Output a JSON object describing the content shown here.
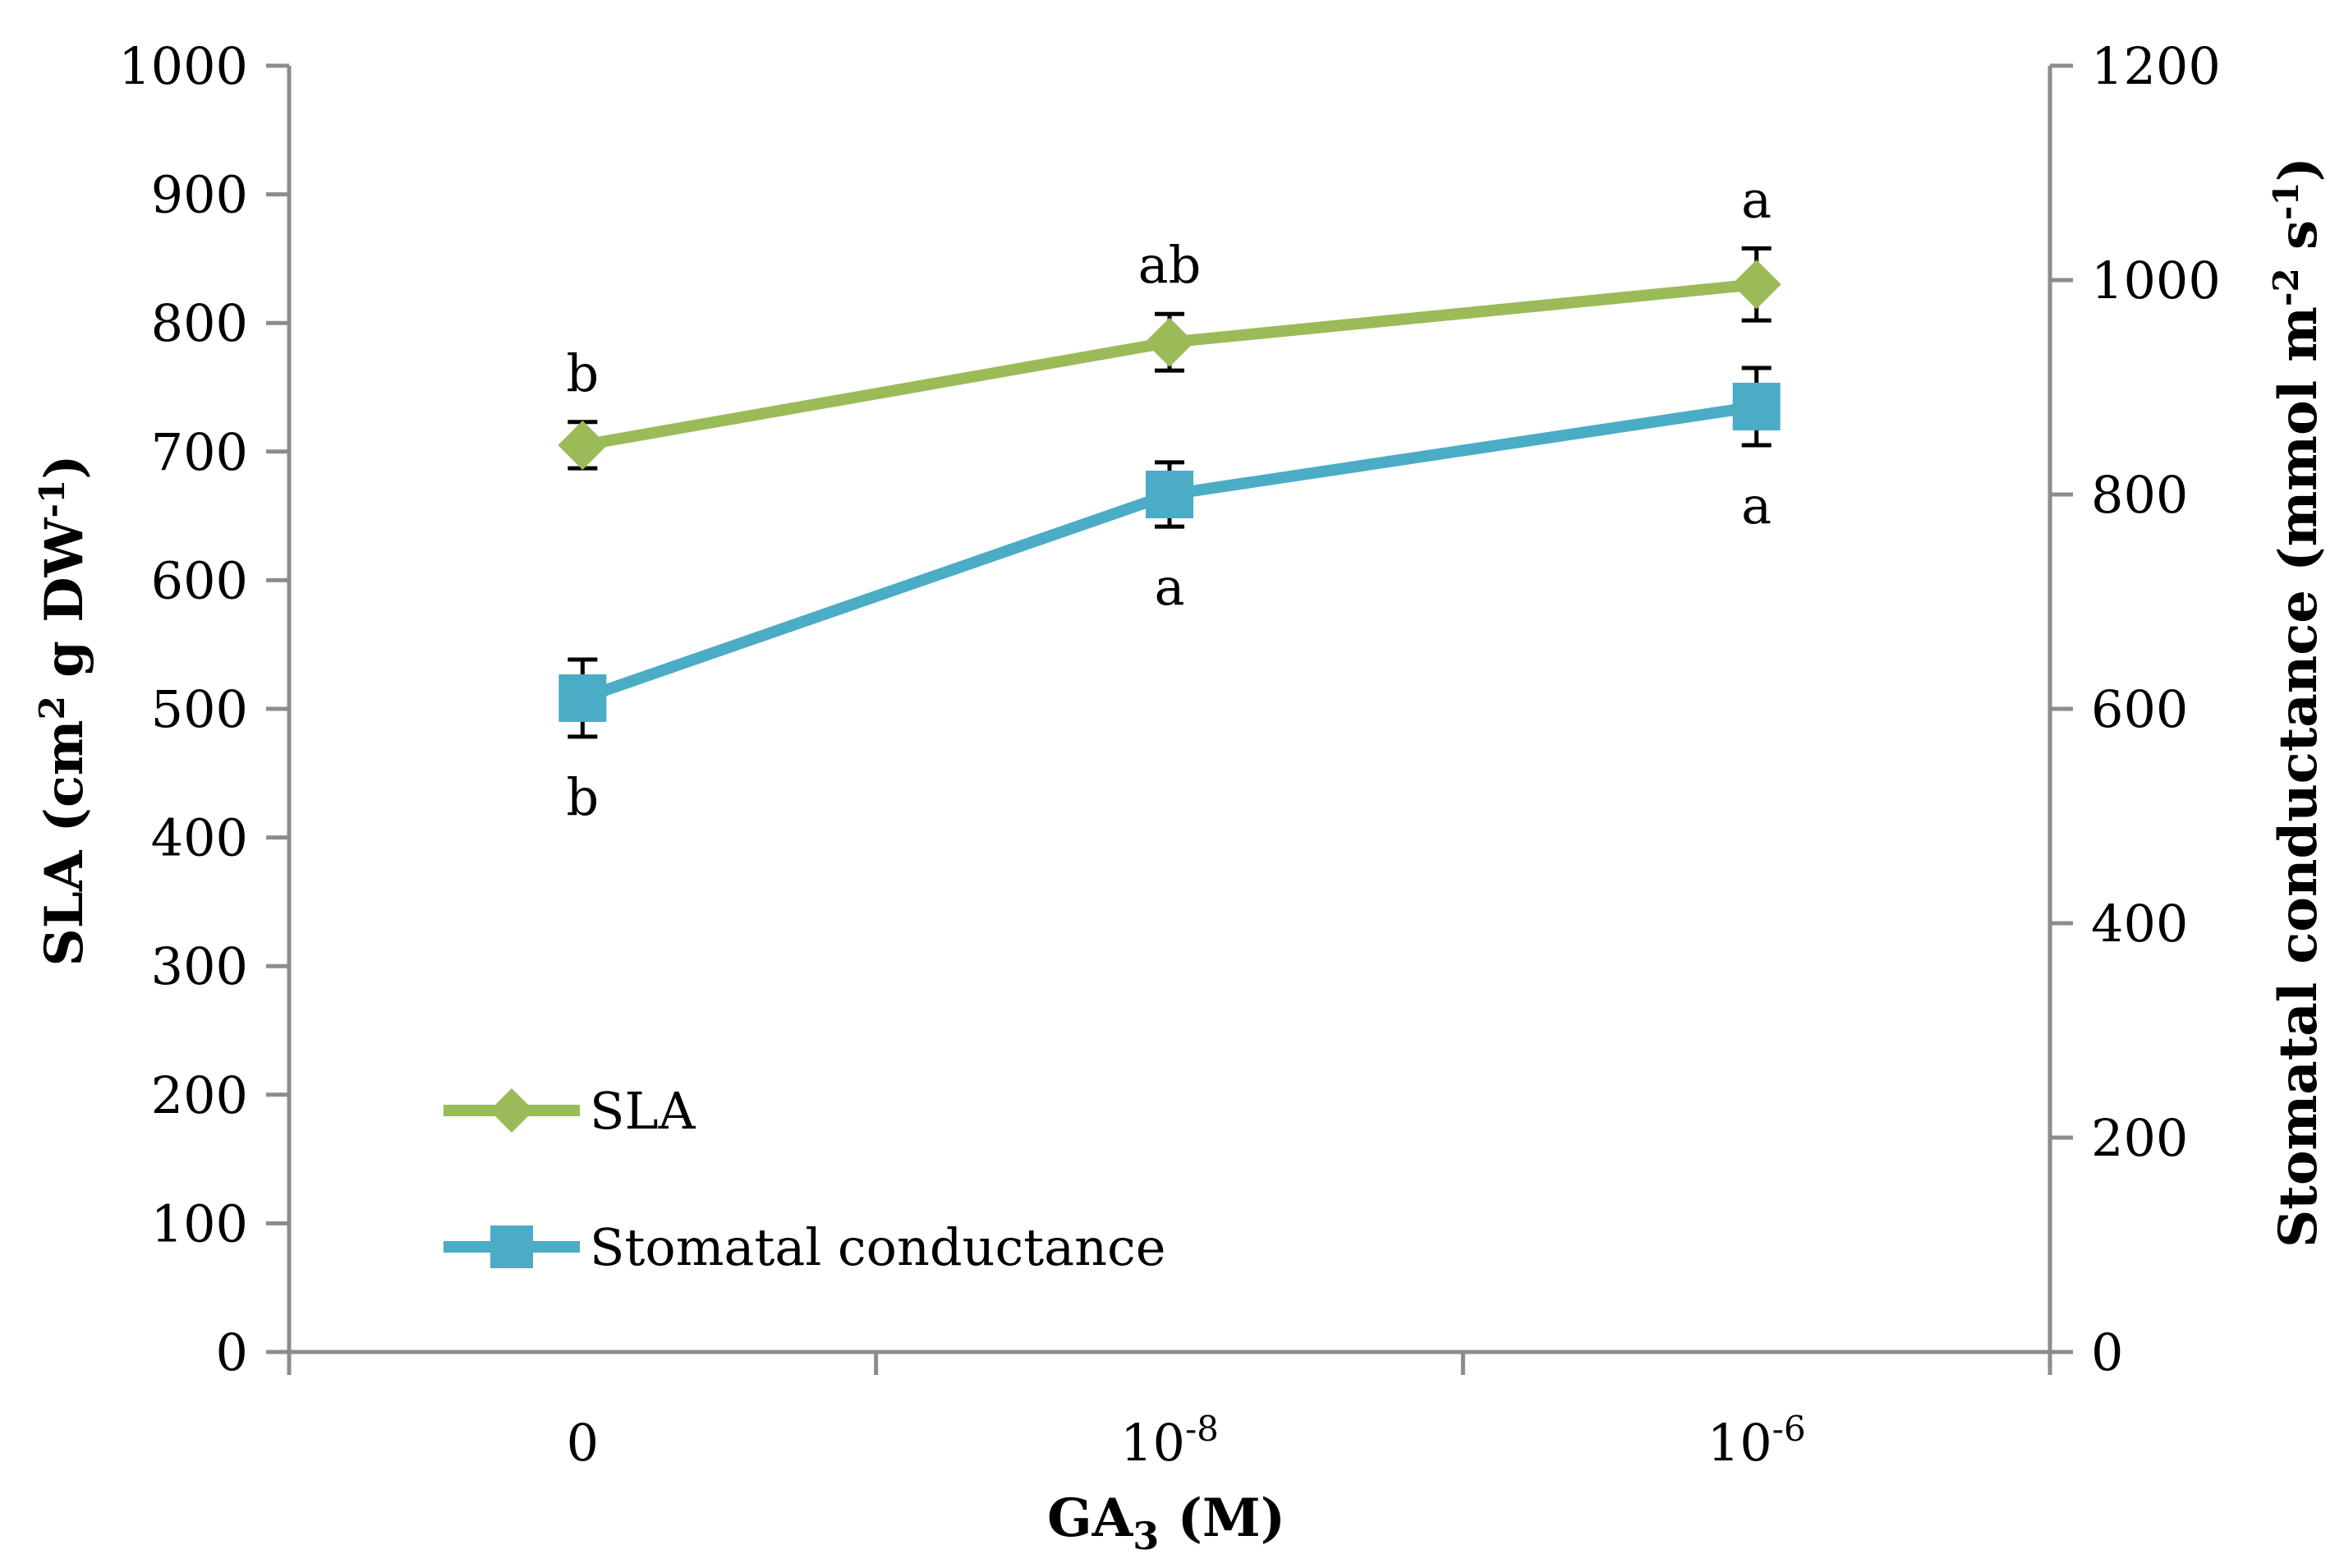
{
  "chart_data": {
    "type": "line",
    "title": "",
    "x": [
      "0",
      "10^-8",
      "10^-6"
    ],
    "x_ticks": [
      {
        "base": "0",
        "exp": ""
      },
      {
        "base": "10",
        "exp": "-8"
      },
      {
        "base": "10",
        "exp": "-6"
      }
    ],
    "xlabel": {
      "base": "GA",
      "sub": "3",
      "suffix": " (M)"
    },
    "ylabel_left": {
      "part1": "SLA (cm",
      "sup1": "2",
      "part2": " g DW",
      "sup2": "-1",
      "part3": ")"
    },
    "ylabel_right": {
      "part1": "Stomatal conductance (mmol m",
      "sup1": "-2",
      "part2": " s",
      "sup2": "-1",
      "part3": ")"
    },
    "ylim_left": [
      0,
      1000
    ],
    "ylim_right": [
      0,
      1200
    ],
    "yticks_left": [
      "0",
      "100",
      "200",
      "300",
      "400",
      "500",
      "600",
      "700",
      "800",
      "900",
      "1000"
    ],
    "yticks_right": [
      "0",
      "200",
      "400",
      "600",
      "800",
      "1000",
      "1200"
    ],
    "series": [
      {
        "name": "SLA",
        "axis": "left",
        "marker": "diamond",
        "color": "#9BBB59",
        "values": [
          705,
          785,
          830
        ],
        "errors": [
          18,
          22,
          28
        ],
        "sig_labels": [
          "b",
          "ab",
          "a"
        ],
        "sig_position": "above"
      },
      {
        "name": "Stomatal conductance",
        "axis": "right",
        "marker": "square",
        "color": "#4BACC6",
        "values": [
          610,
          800,
          882
        ],
        "errors": [
          36,
          30,
          36
        ],
        "sig_labels": [
          "b",
          "a",
          "a"
        ],
        "sig_position": "below"
      }
    ],
    "legend": {
      "position": "bottom-left",
      "entries": [
        "SLA",
        "Stomatal conductance"
      ]
    },
    "grid": false
  }
}
